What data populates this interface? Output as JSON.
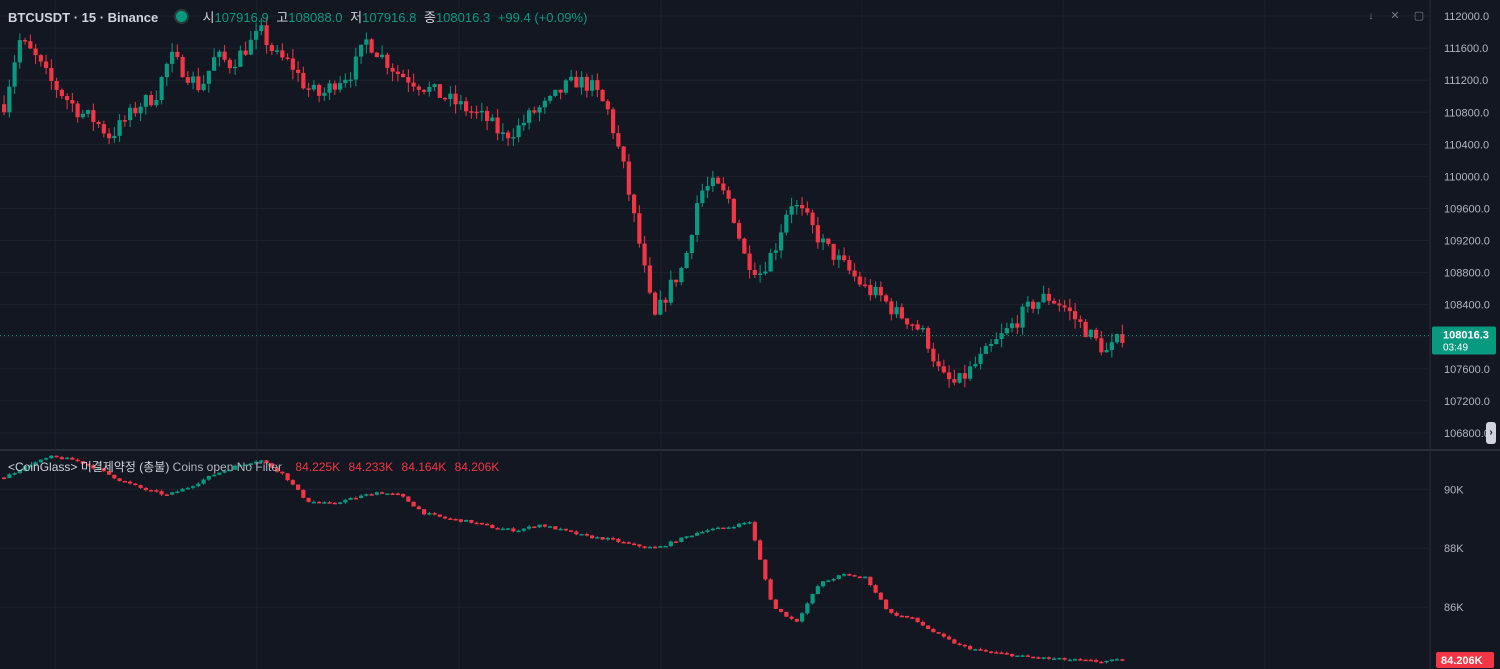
{
  "header": {
    "symbol": "BTCUSDT · 15 · Binance",
    "open_label": "시",
    "open_value": "107916.9",
    "high_label": "고",
    "high_value": "108088.0",
    "low_label": "저",
    "low_value": "107916.8",
    "close_label": "종",
    "close_value": "108016.3",
    "change": "+99.4 (+0.09%)"
  },
  "price_pane": {
    "current_price": "108016.3",
    "countdown": "03:49",
    "y_ticks": [
      "112000.0",
      "111600.0",
      "111200.0",
      "110800.0",
      "110400.0",
      "110000.0",
      "109600.0",
      "109200.0",
      "108800.0",
      "108400.0",
      "108000.0",
      "107600.0",
      "107200.0",
      "106800.0"
    ]
  },
  "oi_pane": {
    "name": "<CoinGlass> 미결제약정 (총불)",
    "description": "Coins open No Filter",
    "values": [
      "84.225K",
      "84.233K",
      "84.164K",
      "84.206K"
    ],
    "current_value": "84.206K",
    "y_ticks": [
      "90K",
      "88K",
      "86K"
    ]
  },
  "colors": {
    "up": "#089981",
    "down": "#f23645",
    "background": "#131722",
    "grid": "#1e222d"
  },
  "chart_data": [
    {
      "type": "candlestick",
      "title": "BTCUSDT · 15 · Binance",
      "ylim": [
        106600,
        112200
      ],
      "y_ticks": [
        112000,
        111600,
        111200,
        110800,
        110400,
        110000,
        109600,
        109200,
        108800,
        108400,
        108000,
        107600,
        107200,
        106800
      ],
      "last_price": 108016.3,
      "close_path": [
        110900,
        111700,
        111500,
        111200,
        111000,
        110800,
        110700,
        110500,
        110700,
        110900,
        111000,
        111500,
        111300,
        111100,
        111500,
        111400,
        111600,
        111800,
        111500,
        111400,
        111100,
        111000,
        111200,
        111300,
        111700,
        111500,
        111300,
        111200,
        111100,
        111000,
        110900,
        110800,
        110700,
        110500,
        110600,
        110800,
        110900,
        111100,
        111200,
        111100,
        110800,
        110100,
        109200,
        108200,
        108600,
        108900,
        109800,
        109900,
        109700,
        109000,
        108800,
        109100,
        109700,
        109500,
        109200,
        109000,
        108800,
        108600,
        108500,
        108300,
        108200,
        108000,
        107500,
        107400,
        107600,
        107800,
        108000,
        108200,
        108400,
        108500,
        108400,
        108200,
        108000,
        107800,
        108016
      ]
    },
    {
      "type": "candlestick",
      "title": "<CoinGlass> 미결제약정 (총불)",
      "ylim": [
        83900,
        91300
      ],
      "y_ticks": [
        90000,
        88000,
        86000
      ],
      "last_value": 84206,
      "close_path": [
        90400,
        90800,
        91100,
        91000,
        90700,
        90300,
        90000,
        89800,
        90100,
        90500,
        90800,
        91000,
        90500,
        89600,
        89500,
        89700,
        89900,
        89800,
        89200,
        89000,
        88900,
        88700,
        88600,
        88800,
        88600,
        88400,
        88300,
        88100,
        88000,
        88300,
        88600,
        88700,
        88900,
        86000,
        85500,
        86800,
        87100,
        87000,
        85800,
        85600,
        85100,
        84700,
        84500,
        84400,
        84300,
        84250,
        84200,
        84150,
        84206
      ]
    }
  ]
}
